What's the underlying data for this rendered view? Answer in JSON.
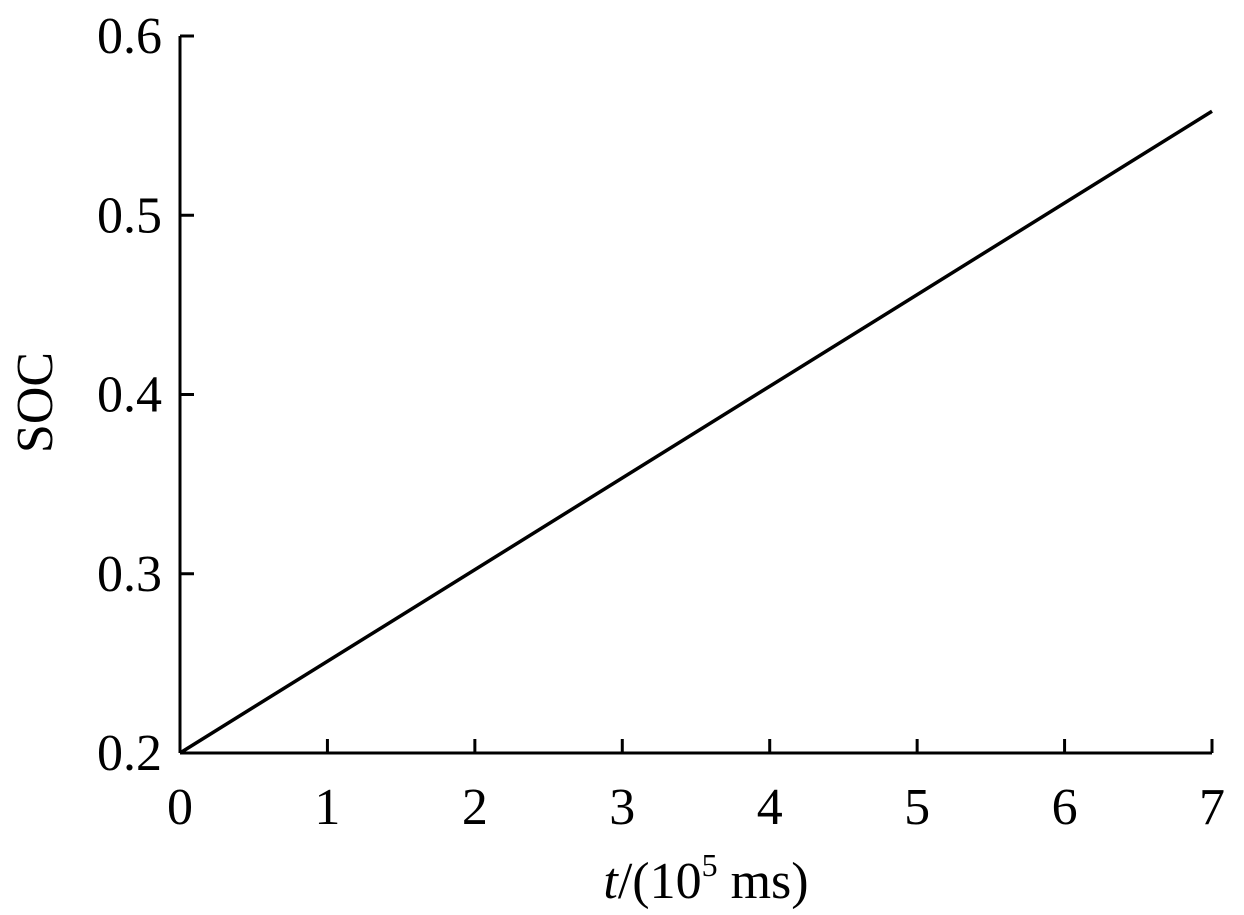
{
  "chart_data": {
    "type": "line",
    "title": "",
    "xlabel": {
      "italic": "t",
      "prefix": "/(10",
      "superscript": "5",
      "suffix": " ms)"
    },
    "ylabel": "SOC",
    "xlim": [
      0,
      7
    ],
    "ylim": [
      0.2,
      0.6
    ],
    "xticks": [
      0,
      1,
      2,
      3,
      4,
      5,
      6,
      7
    ],
    "xtick_labels": [
      "0",
      "1",
      "2",
      "3",
      "4",
      "5",
      "6",
      "7"
    ],
    "yticks": [
      0.2,
      0.3,
      0.4,
      0.5,
      0.6
    ],
    "ytick_labels": [
      "0.2",
      "0.3",
      "0.4",
      "0.5",
      "0.6"
    ],
    "grid": false,
    "legend": "none",
    "series": [
      {
        "color": "#000000",
        "x": [
          0,
          7
        ],
        "y": [
          0.2,
          0.558
        ]
      }
    ]
  }
}
